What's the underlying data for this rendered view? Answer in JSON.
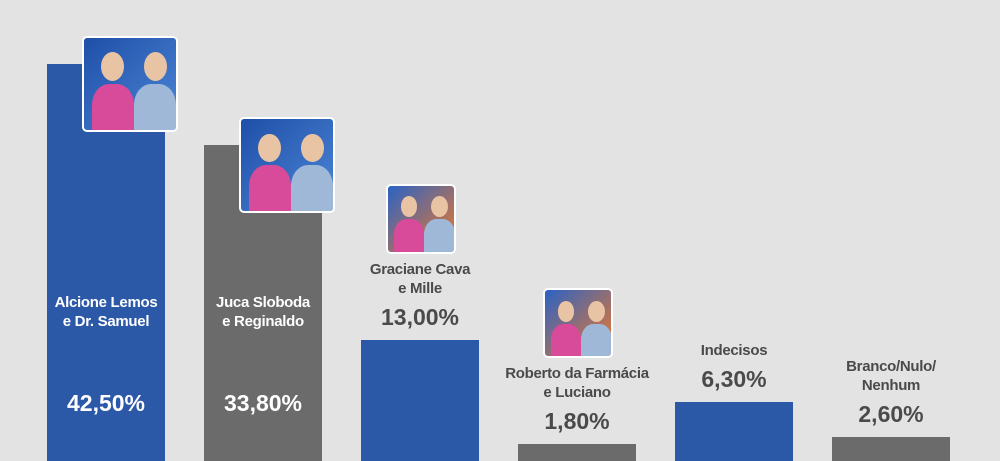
{
  "chart_data": {
    "type": "bar",
    "categories": [
      "Alcione Lemos\ne Dr. Samuel",
      "Juca Sloboda\ne Reginaldo",
      "Graciane Cava\ne Mille",
      "Roberto da Farmácia\ne Luciano",
      "Indecisos",
      "Branco/Nulo/\nNenhum"
    ],
    "values": [
      42.5,
      33.8,
      13.0,
      1.8,
      6.3,
      2.6
    ],
    "value_labels": [
      "42,50%",
      "33,80%",
      "13,00%",
      "1,80%",
      "6,30%",
      "2,60%"
    ],
    "colors": [
      "#2c58a8",
      "#6b6b6b",
      "#2c58a8",
      "#6b6b6b",
      "#2c58a8",
      "#6b6b6b"
    ],
    "ylim": [
      0,
      50
    ]
  }
}
